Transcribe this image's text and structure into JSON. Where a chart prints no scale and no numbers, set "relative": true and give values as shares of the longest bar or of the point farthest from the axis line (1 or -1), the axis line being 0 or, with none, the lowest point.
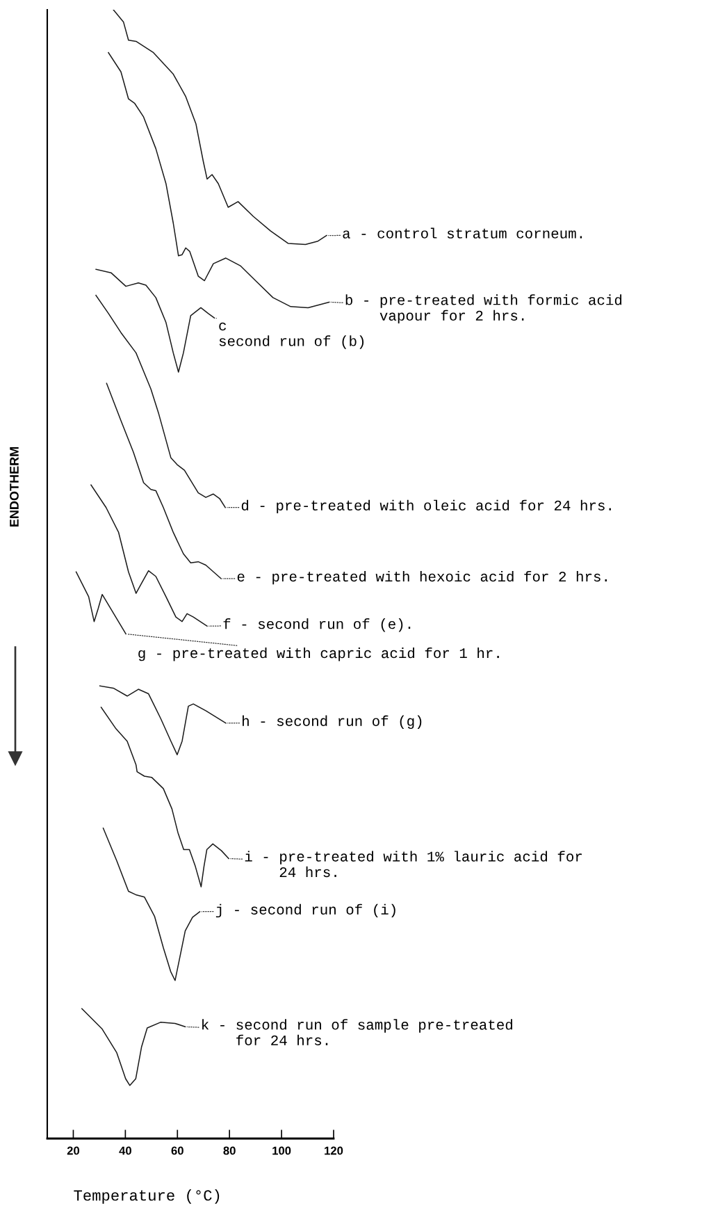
{
  "chart_data": {
    "type": "line",
    "relative": true,
    "xlabel": "Temperature (°C)",
    "ylabel": "ENDOTHERM",
    "xlim": [
      10,
      120
    ],
    "xticks": [
      20,
      40,
      60,
      80,
      100,
      120
    ],
    "tick_labels": "x",
    "grid": false,
    "legend": false,
    "marker": "none",
    "line_style": "solid",
    "series": [
      {
        "color": "#1a1a1a",
        "x": [
          35.4,
          39.3,
          41.2,
          44.1,
          50.8,
          58.4,
          63.2,
          67.1,
          69.9,
          71.4,
          73.3,
          75.7,
          79.5,
          83.3,
          89.1,
          95.8,
          102.5,
          109.2,
          114.0,
          117.3
        ],
        "values": [
          1.0,
          0.989,
          0.973,
          0.972,
          0.962,
          0.943,
          0.923,
          0.899,
          0.866,
          0.85,
          0.854,
          0.846,
          0.825,
          0.83,
          0.817,
          0.804,
          0.793,
          0.792,
          0.795,
          0.8
        ]
      },
      {
        "color": "#1a1a1a",
        "x": [
          33.5,
          38.3,
          41.2,
          43.6,
          47.0,
          51.7,
          55.6,
          58.4,
          60.4,
          61.8,
          63.2,
          64.7,
          68.0,
          70.4,
          73.8,
          78.6,
          84.3,
          90.0,
          96.7,
          103.5,
          110.2,
          118.3
        ],
        "values": [
          0.962,
          0.945,
          0.921,
          0.917,
          0.905,
          0.877,
          0.846,
          0.811,
          0.782,
          0.783,
          0.789,
          0.786,
          0.764,
          0.76,
          0.775,
          0.78,
          0.773,
          0.76,
          0.745,
          0.737,
          0.736,
          0.741
        ]
      },
      {
        "color": "#1a1a1a",
        "x": [
          28.7,
          34.5,
          40.2,
          45.0,
          47.9,
          51.7,
          55.6,
          58.4,
          60.4,
          62.3,
          65.1,
          69.0,
          71.8,
          74.2
        ],
        "values": [
          0.77,
          0.767,
          0.755,
          0.758,
          0.756,
          0.745,
          0.723,
          0.696,
          0.679,
          0.696,
          0.729,
          0.736,
          0.731,
          0.727
        ]
      },
      {
        "color": "#1a1a1a",
        "x": [
          28.7,
          33.5,
          38.3,
          44.1,
          49.8,
          52.7,
          57.5,
          59.9,
          62.7,
          68.0,
          70.9,
          73.8,
          76.2,
          78.4
        ],
        "values": [
          0.747,
          0.731,
          0.714,
          0.696,
          0.664,
          0.643,
          0.603,
          0.597,
          0.592,
          0.572,
          0.568,
          0.571,
          0.567,
          0.559
        ]
      },
      {
        "color": "#1a1a1a",
        "x": [
          32.8,
          38.3,
          43.1,
          47.0,
          49.8,
          51.7,
          54.6,
          58.4,
          62.3,
          65.1,
          68.0,
          70.9,
          76.8
        ],
        "values": [
          0.669,
          0.636,
          0.608,
          0.581,
          0.575,
          0.574,
          0.559,
          0.537,
          0.518,
          0.51,
          0.511,
          0.508,
          0.496
        ]
      },
      {
        "color": "#1a1a1a",
        "x": [
          26.8,
          32.6,
          37.4,
          41.2,
          44.1,
          46.0,
          48.9,
          51.7,
          55.6,
          59.4,
          61.8,
          63.7,
          66.1,
          71.4
        ],
        "values": [
          0.579,
          0.559,
          0.537,
          0.502,
          0.483,
          0.491,
          0.503,
          0.498,
          0.48,
          0.462,
          0.458,
          0.465,
          0.462,
          0.454
        ]
      },
      {
        "color": "#1a1a1a",
        "x": [
          21.1,
          25.9,
          28.0,
          29.5,
          31.1,
          34.5,
          40.2
        ],
        "values": [
          0.502,
          0.48,
          0.458,
          0.469,
          0.482,
          0.469,
          0.447
        ]
      },
      {
        "color": "#1a1a1a",
        "x": [
          30.2,
          35.4,
          40.7,
          45.0,
          48.9,
          53.6,
          57.5,
          59.9,
          61.8,
          64.2,
          66.1,
          70.9,
          78.6
        ],
        "values": [
          0.401,
          0.399,
          0.392,
          0.398,
          0.394,
          0.372,
          0.352,
          0.34,
          0.352,
          0.383,
          0.385,
          0.379,
          0.368
        ]
      },
      {
        "color": "#1a1a1a",
        "x": [
          30.7,
          36.4,
          40.7,
          44.1,
          44.5,
          47.3,
          50.1,
          54.6,
          57.9,
          60.2,
          62.4,
          64.6,
          66.9,
          69.1,
          70.2,
          71.3,
          73.6,
          76.9,
          79.7
        ],
        "values": [
          0.382,
          0.363,
          0.352,
          0.331,
          0.325,
          0.321,
          0.32,
          0.31,
          0.292,
          0.271,
          0.256,
          0.256,
          0.241,
          0.223,
          0.241,
          0.256,
          0.261,
          0.255,
          0.248
        ]
      },
      {
        "color": "#1a1a1a",
        "x": [
          31.5,
          36.7,
          41.2,
          44.0,
          47.3,
          51.2,
          54.6,
          57.4,
          59.1,
          60.7,
          63.0,
          65.8,
          68.6
        ],
        "values": [
          0.275,
          0.246,
          0.219,
          0.216,
          0.214,
          0.197,
          0.169,
          0.148,
          0.14,
          0.158,
          0.184,
          0.196,
          0.201
        ]
      },
      {
        "color": "#1a1a1a",
        "x": [
          23.3,
          31.1,
          36.7,
          40.1,
          41.7,
          44.0,
          46.2,
          48.4,
          53.5,
          59.1,
          63.0
        ],
        "values": [
          0.115,
          0.097,
          0.076,
          0.053,
          0.047,
          0.053,
          0.081,
          0.098,
          0.103,
          0.102,
          0.099
        ]
      }
    ],
    "annotations": [
      {
        "text": "a - control stratum corneum.",
        "x": 117.3,
        "y": 0.8
      },
      {
        "text": "b - pre-treated with formic acid\n    vapour for 2 hrs.",
        "x": 118.3,
        "y": 0.741
      },
      {
        "text": "c\nsecond run of (b)",
        "x": 74.2,
        "y": 0.727
      },
      {
        "text": "d - pre-treated with oleic acid for 24 hrs.",
        "x": 78.4,
        "y": 0.559
      },
      {
        "text": "e - pre-treated with hexoic acid for 2 hrs.",
        "x": 76.8,
        "y": 0.496
      },
      {
        "text": "f - second run of (e).",
        "x": 71.4,
        "y": 0.454
      },
      {
        "text": "g - pre-treated with capric acid for 1 hr.",
        "x": 40.2,
        "y": 0.447
      },
      {
        "text": "h - second run of (g)",
        "x": 78.6,
        "y": 0.368
      },
      {
        "text": "i - pre-treated with 1% lauric acid for\n    24 hrs.",
        "x": 79.7,
        "y": 0.248
      },
      {
        "text": "j - second run of (i)",
        "x": 68.6,
        "y": 0.201
      },
      {
        "text": "k - second run of sample pre-treated\n    for 24 hrs.",
        "x": 63.0,
        "y": 0.099
      }
    ]
  }
}
